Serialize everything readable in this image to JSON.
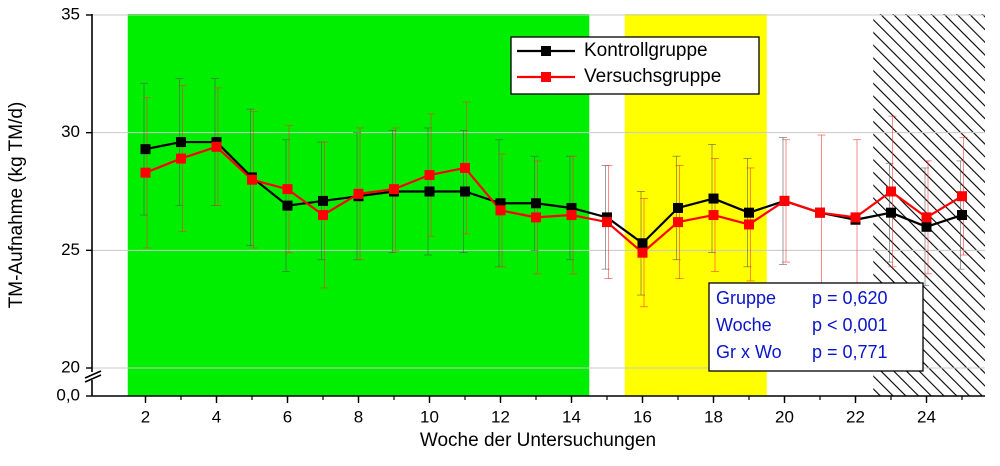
{
  "chart_data": {
    "type": "line",
    "xlabel": "Woche der Untersuchungen",
    "ylabel": "TM-Aufnahme (kg TM/d)",
    "xlim": [
      1,
      26
    ],
    "ylim": [
      20,
      35
    ],
    "y_axis_break": {
      "lower_label": "0,0",
      "upper_start": 20
    },
    "x_ticks": [
      2,
      4,
      6,
      8,
      10,
      12,
      14,
      16,
      18,
      20,
      22,
      24
    ],
    "x_tick_labels": [
      "2",
      "4",
      "6",
      "8",
      "10",
      "12",
      "14",
      "16",
      "18",
      "20",
      "22",
      "24"
    ],
    "y_ticks": [
      20,
      25,
      30,
      35
    ],
    "y_tick_labels": [
      "20",
      "25",
      "30",
      "35"
    ],
    "grid": "horizontal",
    "legend_position": "top-right",
    "background_regions": [
      {
        "x_from": 1.5,
        "x_to": 14.5,
        "fill": "green"
      },
      {
        "x_from": 15.5,
        "x_to": 19.5,
        "fill": "yellow"
      },
      {
        "x_from": 22.5,
        "x_to": 26,
        "fill": "hatched"
      }
    ],
    "x": [
      2,
      3,
      4,
      5,
      6,
      7,
      8,
      9,
      10,
      11,
      12,
      13,
      14,
      15,
      16,
      17,
      18,
      19,
      20,
      21,
      22,
      23,
      24,
      25
    ],
    "series": [
      {
        "name": "Kontrollgruppe",
        "color": "#000000",
        "values": [
          29.3,
          29.6,
          29.6,
          28.1,
          26.9,
          27.1,
          27.3,
          27.5,
          27.5,
          27.5,
          27.0,
          27.0,
          26.8,
          26.4,
          25.3,
          26.8,
          27.2,
          26.6,
          27.1,
          26.6,
          26.3,
          26.6,
          26.0,
          26.5
        ],
        "error": [
          2.8,
          2.7,
          2.7,
          2.9,
          2.8,
          2.5,
          2.7,
          2.6,
          2.7,
          2.6,
          2.7,
          2.0,
          2.2,
          2.2,
          2.2,
          2.2,
          2.3,
          2.3,
          2.7,
          0.0,
          0.0,
          2.1,
          2.5,
          2.3
        ]
      },
      {
        "name": "Versuchsgruppe",
        "color": "#ff0000",
        "values": [
          28.3,
          28.9,
          29.4,
          28.0,
          27.6,
          26.5,
          27.4,
          27.6,
          28.2,
          28.5,
          26.7,
          26.4,
          26.5,
          26.2,
          24.9,
          26.2,
          26.5,
          26.1,
          27.1,
          26.6,
          26.4,
          27.5,
          26.4,
          27.3
        ],
        "error": [
          3.2,
          3.1,
          2.5,
          2.9,
          2.7,
          3.1,
          2.8,
          2.6,
          2.6,
          2.8,
          2.4,
          2.4,
          2.5,
          2.4,
          2.3,
          2.4,
          2.4,
          2.4,
          2.6,
          3.3,
          3.3,
          3.2,
          2.4,
          2.5
        ]
      }
    ],
    "annotations": {
      "stats": [
        {
          "term": "Gruppe",
          "value": "p = 0,620"
        },
        {
          "term": "Woche",
          "value": "p < 0,001"
        },
        {
          "term": "Gr x Wo",
          "value": "p = 0,771"
        }
      ]
    }
  }
}
